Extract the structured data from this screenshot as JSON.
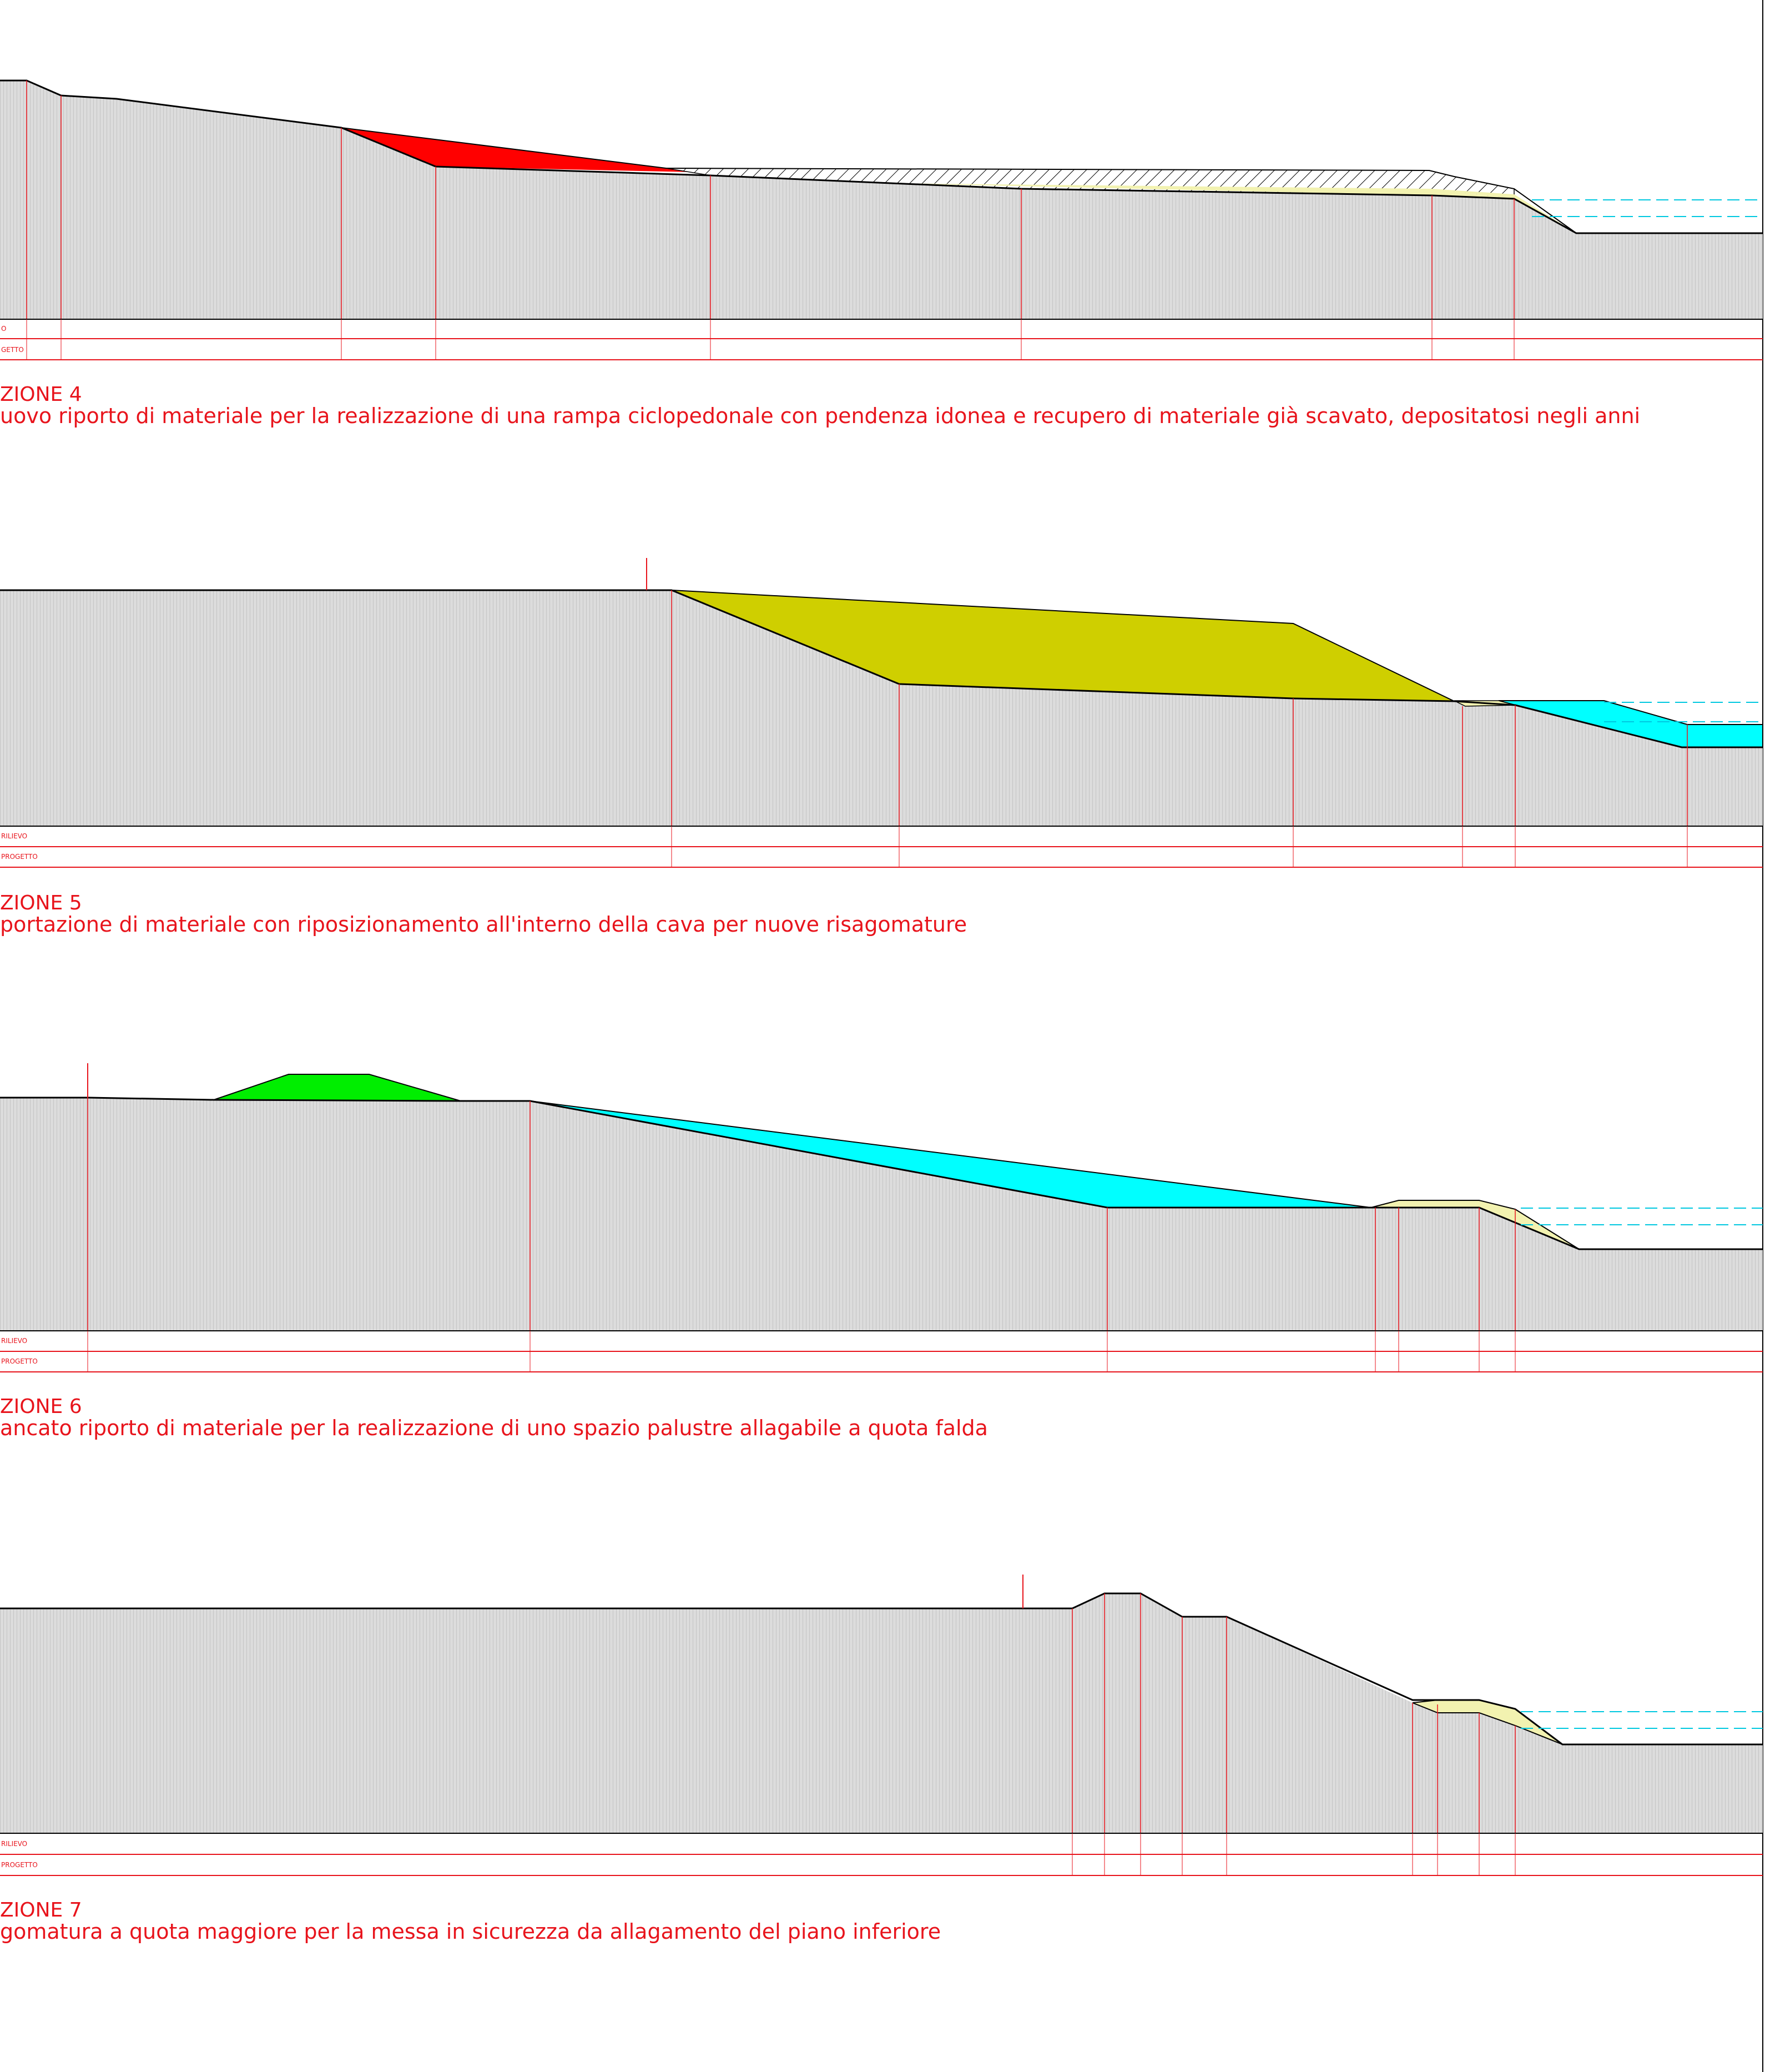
{
  "colors": {
    "ground_fill": "#dcdcdc",
    "ground_hatch": "#c4c4c4",
    "line": "#e8141c",
    "water": "#00e5ff",
    "red_fill": "#ff0000",
    "olive_fill": "#cfcf00",
    "cyan_fill": "#00ffff",
    "green_fill": "#00ee00",
    "cream_fill": "#f2f2b0",
    "water_dash": "#00c8e0"
  },
  "sections": [
    {
      "title": "ZIONE 4",
      "description": "uovo riporto di materiale per la realizzazione di una rampa ciclopedonale con pendenza idonea e recupero di materiale già scavato, depositatosi negli anni",
      "row_labels": [
        "O",
        "GETTO"
      ]
    },
    {
      "title": "ZIONE 5",
      "description": "portazione di materiale con riposizionamento all'interno della cava per nuove risagomature",
      "row_labels": [
        "RILIEVO",
        "PROGETTO"
      ]
    },
    {
      "title": "ZIONE 6",
      "description": "ancato riporto di materiale per la realizzazione di uno spazio palustre allagabile a quota falda",
      "row_labels": [
        "RILIEVO",
        "PROGETTO"
      ]
    },
    {
      "title": "ZIONE 7",
      "description": "gomatura a quota maggiore per la messa in sicurezza da allagamento del piano inferiore",
      "row_labels": [
        "RILIEVO",
        "PROGETTO"
      ]
    }
  ]
}
